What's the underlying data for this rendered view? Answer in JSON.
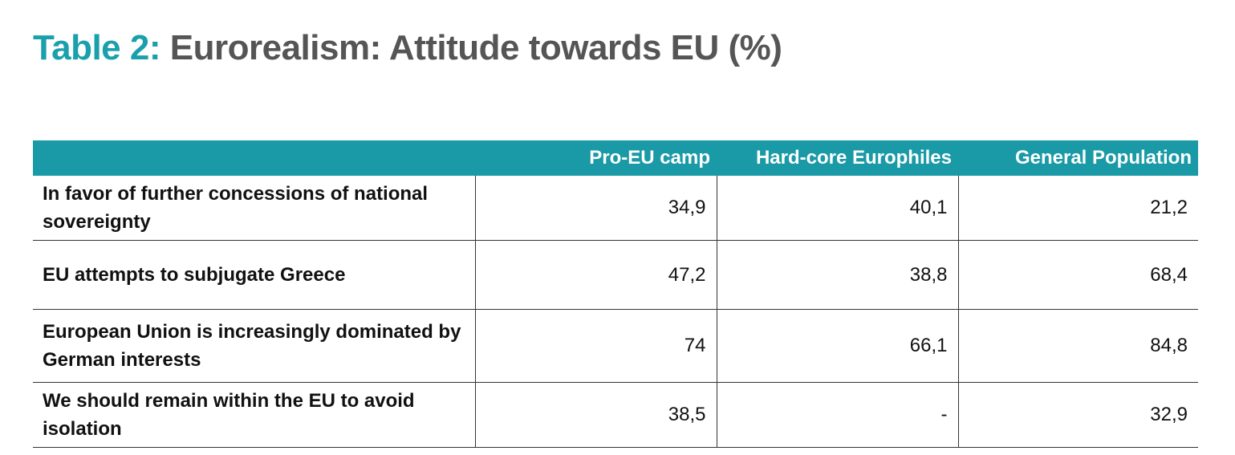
{
  "title": {
    "label": "Table 2:",
    "text": "Eurorealism: Attitude towards EU (%)"
  },
  "table": {
    "headers": [
      "",
      "Pro-EU camp",
      "Hard-core Europhiles",
      "General Population"
    ],
    "rows": [
      {
        "label": "In favor of further concessions of national sovereignty",
        "values": [
          "34,9",
          "40,1",
          "21,2"
        ]
      },
      {
        "label": "EU attempts to subjugate Greece",
        "values": [
          "47,2",
          "38,8",
          "68,4"
        ]
      },
      {
        "label": "European Union is increasingly dominated by German interests",
        "values": [
          "74",
          "66,1",
          "84,8"
        ]
      },
      {
        "label": "We should remain within the EU to avoid isolation",
        "values": [
          "38,5",
          "-",
          "32,9"
        ]
      }
    ]
  },
  "colors": {
    "accent": "#1aa0ac",
    "header_bg": "#1a9aa6",
    "title_text": "#555555"
  }
}
